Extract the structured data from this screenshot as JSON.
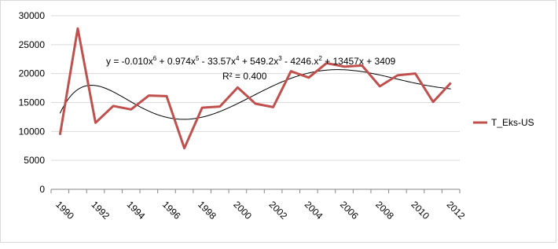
{
  "chart_data": {
    "type": "line",
    "categories": [
      "1990",
      null,
      "1992",
      null,
      "1994",
      null,
      "1996",
      null,
      "1998",
      null,
      "2000",
      null,
      "2002",
      null,
      "2004",
      null,
      "2006",
      null,
      "2008",
      null,
      "2010",
      null,
      "2012"
    ],
    "series": [
      {
        "name": "T_Eks-US",
        "color": "#c0504d",
        "values": [
          9400,
          27800,
          11500,
          14400,
          13800,
          16200,
          16100,
          7100,
          14100,
          14300,
          17600,
          14800,
          14200,
          20400,
          19300,
          21800,
          21200,
          21400,
          17800,
          19700,
          20000,
          15100,
          18400
        ]
      }
    ],
    "ylim": [
      0,
      30000
    ],
    "yticks": [
      0,
      5000,
      10000,
      15000,
      20000,
      25000,
      30000
    ],
    "grid": true,
    "legend": "right",
    "trendline": {
      "degree": 6,
      "color": "#000000",
      "equation": [
        "y = -0.010x",
        "6",
        " + 0.974x",
        "5",
        " - 33.57x",
        "4",
        " + 549.2x",
        "3",
        " - 4246.x",
        "2",
        " + 13457x + 3409"
      ],
      "r_squared": "R² = 0.400"
    }
  }
}
